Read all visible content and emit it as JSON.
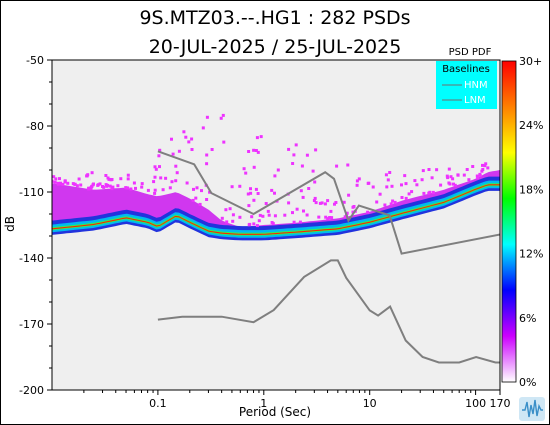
{
  "chart_data": {
    "type": "heatmap",
    "title": "9S.MTZ03.--.HG1 : 282 PSDs",
    "subtitle": "20-JUL-2025 / 25-JUL-2025",
    "xlabel": "Period (Sec)",
    "ylabel": "dB",
    "x_scale": "log",
    "xlim": [
      0.01,
      170
    ],
    "ylim": [
      -200,
      -50
    ],
    "x_ticks": [
      "0.1",
      "1",
      "10",
      "100",
      "170"
    ],
    "x_tick_values": [
      0.1,
      1,
      10,
      100,
      170
    ],
    "y_ticks": [
      "-50",
      "-80",
      "-110",
      "-140",
      "-170",
      "-200"
    ],
    "y_tick_values": [
      -50,
      -80,
      -110,
      -140,
      -170,
      -200
    ],
    "grid": false,
    "background": "#efefef",
    "colorbar": {
      "title": "PSD PDF",
      "labels": [
        "30+",
        "24%",
        "18%",
        "12%",
        "6%",
        "0%"
      ],
      "label_values": [
        30,
        24,
        18,
        12,
        6,
        0
      ],
      "colors": [
        "#ff0000",
        "#ff8000",
        "#ffff00",
        "#00ff00",
        "#00ffff",
        "#0000ff",
        "#cc00ff",
        "#ffffff"
      ]
    },
    "legend": {
      "title": "Baselines",
      "position": "top-right",
      "background": "#00ffff",
      "entries": [
        "HNM",
        "LNM"
      ]
    },
    "series": [
      {
        "name": "HNM",
        "color": "#7f7f7f",
        "x": [
          0.1,
          0.22,
          0.32,
          0.8,
          3.8,
          4.6,
          6.3,
          7.9,
          15.4,
          20,
          354
        ],
        "y": [
          -91.5,
          -97.4,
          -110.5,
          -120,
          -101,
          -104,
          -123,
          -116.2,
          -120.6,
          -138,
          -126.3
        ]
      },
      {
        "name": "LNM",
        "color": "#7f7f7f",
        "x": [
          0.1,
          0.17,
          0.4,
          0.8,
          1.24,
          2.4,
          4.3,
          5,
          6,
          10,
          12,
          15.6,
          21.9,
          31.6,
          45,
          70,
          101,
          154,
          328,
          600,
          10000
        ],
        "y": [
          -168,
          -166.7,
          -166.7,
          -169.2,
          -163.7,
          -148.6,
          -141.1,
          -141.1,
          -149,
          -163.8,
          -166.2,
          -162.1,
          -177.5,
          -185,
          -187.5,
          -187.5,
          -185,
          -187.5,
          -187.5,
          -185,
          -168
        ]
      }
    ],
    "density": {
      "mode_curve_x": [
        0.01,
        0.025,
        0.05,
        0.08,
        0.1,
        0.15,
        0.2,
        0.3,
        0.4,
        0.6,
        1,
        2,
        5,
        10,
        20,
        50,
        100,
        130,
        170
      ],
      "mode_curve_y": [
        -127,
        -125,
        -122,
        -124,
        -126,
        -121,
        -124,
        -128,
        -129,
        -129.5,
        -129.5,
        -128.5,
        -127,
        -124,
        -120,
        -115,
        -109,
        -107,
        -107
      ],
      "outlier_band_low": [
        -106,
        -109,
        -108,
        -111,
        -112,
        -110,
        -113,
        -118,
        -123,
        -126,
        -125,
        -124,
        -122,
        -119,
        -114,
        -109,
        -104,
        -101,
        -100
      ],
      "outlier_band_high": [
        -103,
        -101,
        -102,
        -104,
        -90,
        -82,
        -83,
        -74,
        -70,
        -78,
        -85,
        -88,
        -90,
        -96,
        -101,
        -99,
        -98,
        -96,
        -96
      ]
    }
  }
}
